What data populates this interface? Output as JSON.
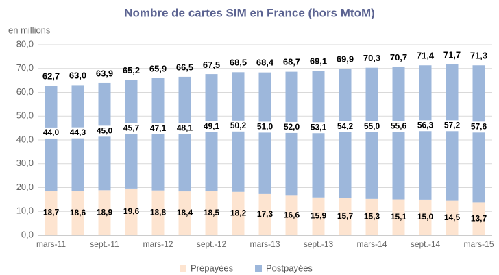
{
  "chart_data": {
    "type": "stacked-bar",
    "title": "Nombre de cartes SIM en France (hors MtoM)",
    "y_label": "en millions",
    "categories": [
      "mars-11",
      null,
      "sept.-11",
      null,
      "mars-12",
      null,
      "sept.-12",
      null,
      "mars-13",
      null,
      "sept.-13",
      null,
      "mars-14",
      null,
      "sept.-14",
      null,
      "mars-15"
    ],
    "series": [
      {
        "name": "Prépayées",
        "color": "#fde4d0",
        "values": [
          18.7,
          18.6,
          18.9,
          19.6,
          18.8,
          18.4,
          18.5,
          18.2,
          17.3,
          16.6,
          15.9,
          15.7,
          15.3,
          15.1,
          15.0,
          14.5,
          13.7
        ],
        "value_labels": [
          "18,7",
          "18,6",
          "18,9",
          "19,6",
          "18,8",
          "18,4",
          "18,5",
          "18,2",
          "17,3",
          "16,6",
          "15,9",
          "15,7",
          "15,3",
          "15,1",
          "15,0",
          "14,5",
          "13,7"
        ]
      },
      {
        "name": "Postpayées",
        "color": "#9db7db",
        "values": [
          44.0,
          44.3,
          45.0,
          45.7,
          47.1,
          48.1,
          49.1,
          50.2,
          51.0,
          52.0,
          53.1,
          54.2,
          55.0,
          55.6,
          56.3,
          57.2,
          57.6
        ],
        "value_labels": [
          "44,0",
          "44,3",
          "45,0",
          "45,7",
          "47,1",
          "48,1",
          "49,1",
          "50,2",
          "51,0",
          "52,0",
          "53,1",
          "54,2",
          "55,0",
          "55,6",
          "56,3",
          "57,2",
          "57,6"
        ]
      }
    ],
    "totals": [
      62.7,
      63.0,
      63.9,
      65.2,
      65.9,
      66.5,
      67.5,
      68.5,
      68.4,
      68.7,
      69.1,
      69.9,
      70.3,
      70.7,
      71.4,
      71.7,
      71.3
    ],
    "total_labels": [
      "62,7",
      "63,0",
      "63,9",
      "65,2",
      "65,9",
      "66,5",
      "67,5",
      "68,5",
      "68,4",
      "68,7",
      "69,1",
      "69,9",
      "70,3",
      "70,7",
      "71,4",
      "71,7",
      "71,3"
    ],
    "ylim": [
      0,
      80
    ],
    "yticks": [
      {
        "value": 0,
        "label": "0,0"
      },
      {
        "value": 10,
        "label": "10,0"
      },
      {
        "value": 20,
        "label": "20,0"
      },
      {
        "value": 30,
        "label": "30,0"
      },
      {
        "value": 40,
        "label": "40,0"
      },
      {
        "value": 50,
        "label": "50,0"
      },
      {
        "value": 60,
        "label": "60,0"
      },
      {
        "value": 70,
        "label": "70,0"
      },
      {
        "value": 80,
        "label": "80,0"
      }
    ],
    "grid": true,
    "legend": "bottom"
  }
}
